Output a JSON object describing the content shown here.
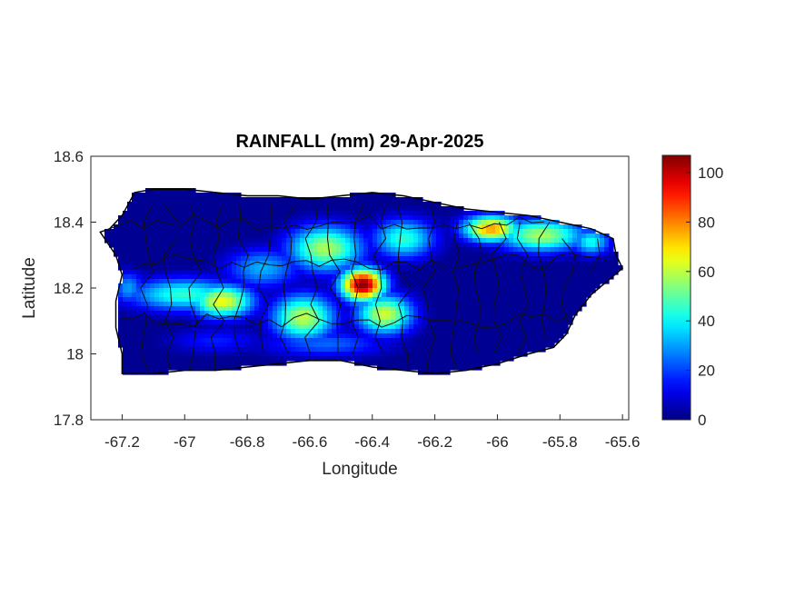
{
  "chart_data": {
    "type": "heatmap",
    "title": "RAINFALL (mm) 29-Apr-2025",
    "xlabel": "Longitude",
    "ylabel": "Latitude",
    "xlim": [
      -67.3,
      -65.58
    ],
    "ylim": [
      17.8,
      18.6
    ],
    "xticks": [
      -67.2,
      -67,
      -66.8,
      -66.6,
      -66.4,
      -66.2,
      -66,
      -65.8,
      -65.6
    ],
    "xtick_labels": [
      "-67.2",
      "-67",
      "-66.8",
      "-66.6",
      "-66.4",
      "-66.2",
      "-66",
      "-65.8",
      "-65.6"
    ],
    "yticks": [
      17.8,
      18,
      18.2,
      18.4,
      18.6
    ],
    "ytick_labels": [
      "17.8",
      "18",
      "18.2",
      "18.4",
      "18.6"
    ],
    "colorbar": {
      "colormap": "jet",
      "range": [
        0,
        107
      ],
      "ticks": [
        0,
        20,
        40,
        60,
        80,
        100
      ],
      "tick_labels": [
        "0",
        "20",
        "40",
        "60",
        "80",
        "100"
      ]
    },
    "island_outline": [
      [
        -67.27,
        18.37
      ],
      [
        -67.24,
        18.38
      ],
      [
        -67.2,
        18.42
      ],
      [
        -67.16,
        18.49
      ],
      [
        -67.1,
        18.5
      ],
      [
        -67.0,
        18.5
      ],
      [
        -66.9,
        18.49
      ],
      [
        -66.8,
        18.48
      ],
      [
        -66.7,
        18.48
      ],
      [
        -66.6,
        18.47
      ],
      [
        -66.5,
        18.48
      ],
      [
        -66.4,
        18.49
      ],
      [
        -66.3,
        18.48
      ],
      [
        -66.2,
        18.46
      ],
      [
        -66.1,
        18.44
      ],
      [
        -66.0,
        18.43
      ],
      [
        -65.9,
        18.42
      ],
      [
        -65.8,
        18.4
      ],
      [
        -65.7,
        18.38
      ],
      [
        -65.63,
        18.35
      ],
      [
        -65.62,
        18.3
      ],
      [
        -65.6,
        18.26
      ],
      [
        -65.65,
        18.22
      ],
      [
        -65.7,
        18.18
      ],
      [
        -65.75,
        18.12
      ],
      [
        -65.78,
        18.06
      ],
      [
        -65.82,
        18.02
      ],
      [
        -65.9,
        18.0
      ],
      [
        -66.0,
        17.97
      ],
      [
        -66.1,
        17.95
      ],
      [
        -66.2,
        17.94
      ],
      [
        -66.3,
        17.95
      ],
      [
        -66.4,
        17.96
      ],
      [
        -66.5,
        17.98
      ],
      [
        -66.6,
        17.98
      ],
      [
        -66.7,
        17.97
      ],
      [
        -66.8,
        17.96
      ],
      [
        -66.9,
        17.95
      ],
      [
        -67.0,
        17.95
      ],
      [
        -67.1,
        17.94
      ],
      [
        -67.2,
        17.94
      ],
      [
        -67.2,
        18.0
      ],
      [
        -67.22,
        18.08
      ],
      [
        -67.22,
        18.16
      ],
      [
        -67.2,
        18.24
      ],
      [
        -67.22,
        18.3
      ]
    ],
    "rain_centers": [
      {
        "lon": -66.43,
        "lat": 18.21,
        "value": 107,
        "spread_lon": 0.07,
        "spread_lat": 0.05
      },
      {
        "lon": -66.62,
        "lat": 18.11,
        "value": 60,
        "spread_lon": 0.1,
        "spread_lat": 0.07
      },
      {
        "lon": -66.88,
        "lat": 18.16,
        "value": 66,
        "spread_lon": 0.1,
        "spread_lat": 0.05
      },
      {
        "lon": -66.36,
        "lat": 18.12,
        "value": 62,
        "spread_lon": 0.09,
        "spread_lat": 0.06
      },
      {
        "lon": -66.55,
        "lat": 18.32,
        "value": 58,
        "spread_lon": 0.12,
        "spread_lat": 0.07
      },
      {
        "lon": -66.02,
        "lat": 18.38,
        "value": 78,
        "spread_lon": 0.09,
        "spread_lat": 0.04
      },
      {
        "lon": -65.86,
        "lat": 18.36,
        "value": 58,
        "spread_lon": 0.14,
        "spread_lat": 0.05
      },
      {
        "lon": -66.3,
        "lat": 18.35,
        "value": 45,
        "spread_lon": 0.1,
        "spread_lat": 0.06
      },
      {
        "lon": -67.0,
        "lat": 18.18,
        "value": 45,
        "spread_lon": 0.18,
        "spread_lat": 0.05
      },
      {
        "lon": -65.7,
        "lat": 18.34,
        "value": 42,
        "spread_lon": 0.06,
        "spread_lat": 0.04
      },
      {
        "lon": -66.75,
        "lat": 18.26,
        "value": 32,
        "spread_lon": 0.12,
        "spread_lat": 0.06
      },
      {
        "lon": -66.55,
        "lat": 18.03,
        "value": 24,
        "spread_lon": 0.2,
        "spread_lat": 0.04
      },
      {
        "lon": -66.9,
        "lat": 18.04,
        "value": 16,
        "spread_lon": 0.15,
        "spread_lat": 0.04
      },
      {
        "lon": -67.18,
        "lat": 18.2,
        "value": 30,
        "spread_lon": 0.05,
        "spread_lat": 0.05
      }
    ]
  }
}
